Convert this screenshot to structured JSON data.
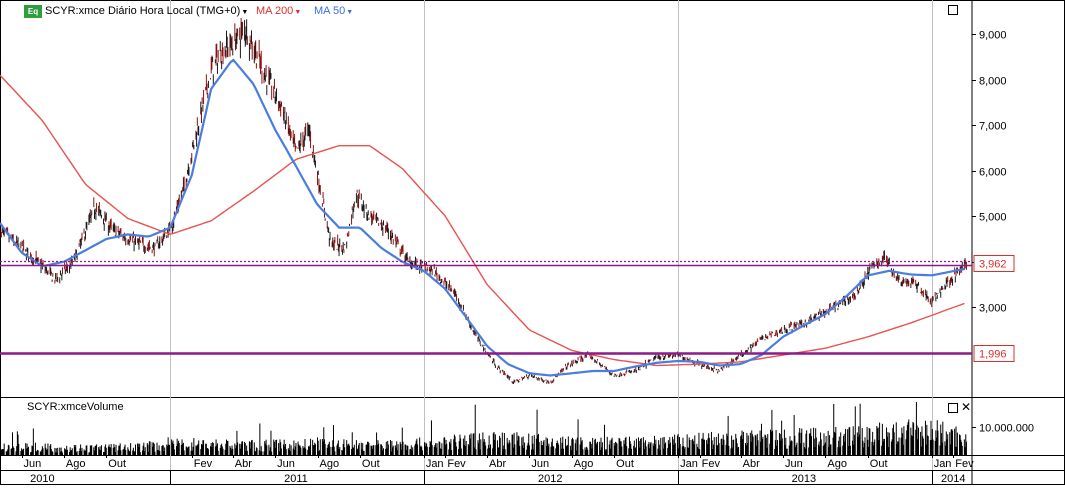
{
  "header": {
    "badge": "Eq",
    "symbol_label": "SCYR:xmce Diário Hora Local (TMG+0)",
    "ma200_label": "MA 200",
    "ma50_label": "MA 50"
  },
  "volume_panel": {
    "title": "SCYR:xmceVolume",
    "axis_label": "10.000.000"
  },
  "colors": {
    "ma200": "#e8524f",
    "ma50": "#4a7de0",
    "hline": "#8b1a8b",
    "price_box": "#d9302f"
  },
  "chart_data": [
    {
      "type": "line",
      "title": "SCYR:xmce Diário Hora Local (TMG+0)",
      "ylabel": "",
      "ylim": [
        1.05,
        9.75
      ],
      "y_ticks": [
        3.0,
        4.0,
        5.0,
        6.0,
        7.0,
        8.0,
        9.0
      ],
      "y_tick_labels": [
        "3,000",
        "4,000",
        "5,000",
        "6,000",
        "7,000",
        "8,000",
        "9,000"
      ],
      "x_month_labels": [
        "Jun",
        "Ago",
        "Out",
        "Fev",
        "Abr",
        "Jun",
        "Ago",
        "Out",
        "Jan",
        "Fev",
        "Abr",
        "Jun",
        "Ago",
        "Out",
        "Jan",
        "Fev",
        "Abr",
        "Jun",
        "Ago",
        "Out",
        "Jan",
        "Fev"
      ],
      "x_year_labels": [
        "2010",
        "2011",
        "2012",
        "2013",
        "2014"
      ],
      "x_range": [
        "2010-05-01",
        "2014-02-28"
      ],
      "series": [
        {
          "name": "SCYR:xmce",
          "style": "ohlc-bars",
          "x": [
            "2010-05-01",
            "2010-06-01",
            "2010-07-01",
            "2010-07-20",
            "2010-08-15",
            "2010-09-15",
            "2010-10-10",
            "2010-11-15",
            "2010-12-10",
            "2011-01-01",
            "2011-01-20",
            "2011-02-10",
            "2011-03-01",
            "2011-03-15",
            "2011-04-01",
            "2011-04-20",
            "2011-05-15",
            "2011-06-10",
            "2011-07-01",
            "2011-07-20",
            "2011-08-20",
            "2011-09-10",
            "2011-09-25",
            "2011-10-15",
            "2011-11-10",
            "2011-12-10",
            "2012-01-15",
            "2012-02-15",
            "2012-03-15",
            "2012-04-15",
            "2012-05-10",
            "2012-06-01",
            "2012-07-01",
            "2012-07-25",
            "2012-08-25",
            "2012-10-01",
            "2012-11-01",
            "2012-12-01",
            "2013-01-01",
            "2013-02-01",
            "2013-03-01",
            "2013-04-01",
            "2013-05-01",
            "2013-06-01",
            "2013-07-01",
            "2013-08-15",
            "2013-09-15",
            "2013-10-05",
            "2013-10-25",
            "2013-11-15",
            "2013-12-10",
            "2014-01-01",
            "2014-01-20",
            "2014-02-20"
          ],
          "values": [
            4.7,
            4.3,
            3.9,
            3.6,
            4.0,
            5.2,
            4.7,
            4.4,
            4.3,
            4.7,
            5.6,
            7.0,
            8.2,
            8.6,
            8.8,
            9.1,
            8.2,
            7.4,
            6.4,
            6.9,
            4.4,
            4.3,
            5.5,
            5.0,
            4.7,
            4.0,
            3.8,
            3.3,
            2.4,
            1.7,
            1.35,
            1.5,
            1.35,
            1.7,
            1.95,
            1.5,
            1.6,
            1.9,
            1.95,
            1.75,
            1.6,
            1.95,
            2.3,
            2.5,
            2.65,
            3.0,
            3.3,
            3.85,
            4.1,
            3.6,
            3.5,
            3.1,
            3.5,
            3.95
          ]
        },
        {
          "name": "MA 200",
          "x": [
            "2010-05-01",
            "2010-07-01",
            "2010-09-01",
            "2010-11-01",
            "2011-01-01",
            "2011-03-01",
            "2011-05-01",
            "2011-07-01",
            "2011-09-01",
            "2011-10-15",
            "2011-12-01",
            "2012-02-01",
            "2012-04-01",
            "2012-06-01",
            "2012-08-01",
            "2012-10-01",
            "2012-12-01",
            "2013-02-01",
            "2013-04-01",
            "2013-06-01",
            "2013-08-01",
            "2013-10-01",
            "2013-12-01",
            "2014-02-20"
          ],
          "values": [
            8.1,
            7.1,
            5.7,
            4.95,
            4.6,
            4.9,
            5.55,
            6.25,
            6.55,
            6.55,
            6.05,
            5.0,
            3.5,
            2.5,
            2.05,
            1.85,
            1.72,
            1.75,
            1.8,
            1.95,
            2.1,
            2.35,
            2.65,
            3.1
          ]
        },
        {
          "name": "MA 50",
          "x": [
            "2010-05-01",
            "2010-06-01",
            "2010-07-01",
            "2010-08-01",
            "2010-09-01",
            "2010-10-01",
            "2010-11-01",
            "2010-12-01",
            "2011-01-01",
            "2011-02-01",
            "2011-03-01",
            "2011-04-01",
            "2011-05-01",
            "2011-06-01",
            "2011-07-01",
            "2011-08-01",
            "2011-09-01",
            "2011-10-01",
            "2011-11-01",
            "2011-12-01",
            "2012-01-01",
            "2012-02-01",
            "2012-03-01",
            "2012-04-01",
            "2012-05-01",
            "2012-06-01",
            "2012-07-01",
            "2012-08-01",
            "2012-09-01",
            "2012-10-01",
            "2012-11-01",
            "2012-12-01",
            "2013-01-01",
            "2013-02-01",
            "2013-03-01",
            "2013-04-01",
            "2013-05-01",
            "2013-06-01",
            "2013-07-01",
            "2013-08-01",
            "2013-09-01",
            "2013-10-01",
            "2013-11-01",
            "2013-12-01",
            "2014-01-01",
            "2014-02-20"
          ],
          "values": [
            4.85,
            4.2,
            3.9,
            4.0,
            4.25,
            4.5,
            4.6,
            4.55,
            4.75,
            5.9,
            7.8,
            8.45,
            7.9,
            6.9,
            6.1,
            5.25,
            4.75,
            4.75,
            4.3,
            4.0,
            3.8,
            3.4,
            2.8,
            2.15,
            1.75,
            1.55,
            1.5,
            1.55,
            1.6,
            1.6,
            1.7,
            1.78,
            1.82,
            1.8,
            1.72,
            1.75,
            1.95,
            2.35,
            2.6,
            2.85,
            3.25,
            3.7,
            3.8,
            3.72,
            3.7,
            3.85
          ]
        }
      ],
      "horizontal_lines": [
        {
          "value": 3.962,
          "label": "3,962",
          "style": "double-dotted"
        },
        {
          "value": 1.996,
          "label": "1,996",
          "style": "solid"
        }
      ]
    },
    {
      "type": "bar",
      "title": "SCYR:xmceVolume",
      "ylabel": "",
      "y_ticks": [
        10000000
      ],
      "y_tick_labels": [
        "10.000.000"
      ],
      "x": [
        "2010-05-01",
        "2010-08-01",
        "2010-11-01",
        "2011-02-01",
        "2011-05-01",
        "2011-08-01",
        "2011-11-01",
        "2012-02-01",
        "2012-04-01",
        "2012-06-01",
        "2012-09-01",
        "2012-12-01",
        "2013-03-01",
        "2013-06-01",
        "2013-09-01",
        "2013-11-01",
        "2014-01-01",
        "2014-02-20"
      ],
      "values": [
        3500000,
        2800000,
        3000000,
        4500000,
        3800000,
        4200000,
        3900000,
        4800000,
        6500000,
        5500000,
        4500000,
        5000000,
        6000000,
        7000000,
        7500000,
        8500000,
        9500000,
        7000000
      ]
    }
  ]
}
